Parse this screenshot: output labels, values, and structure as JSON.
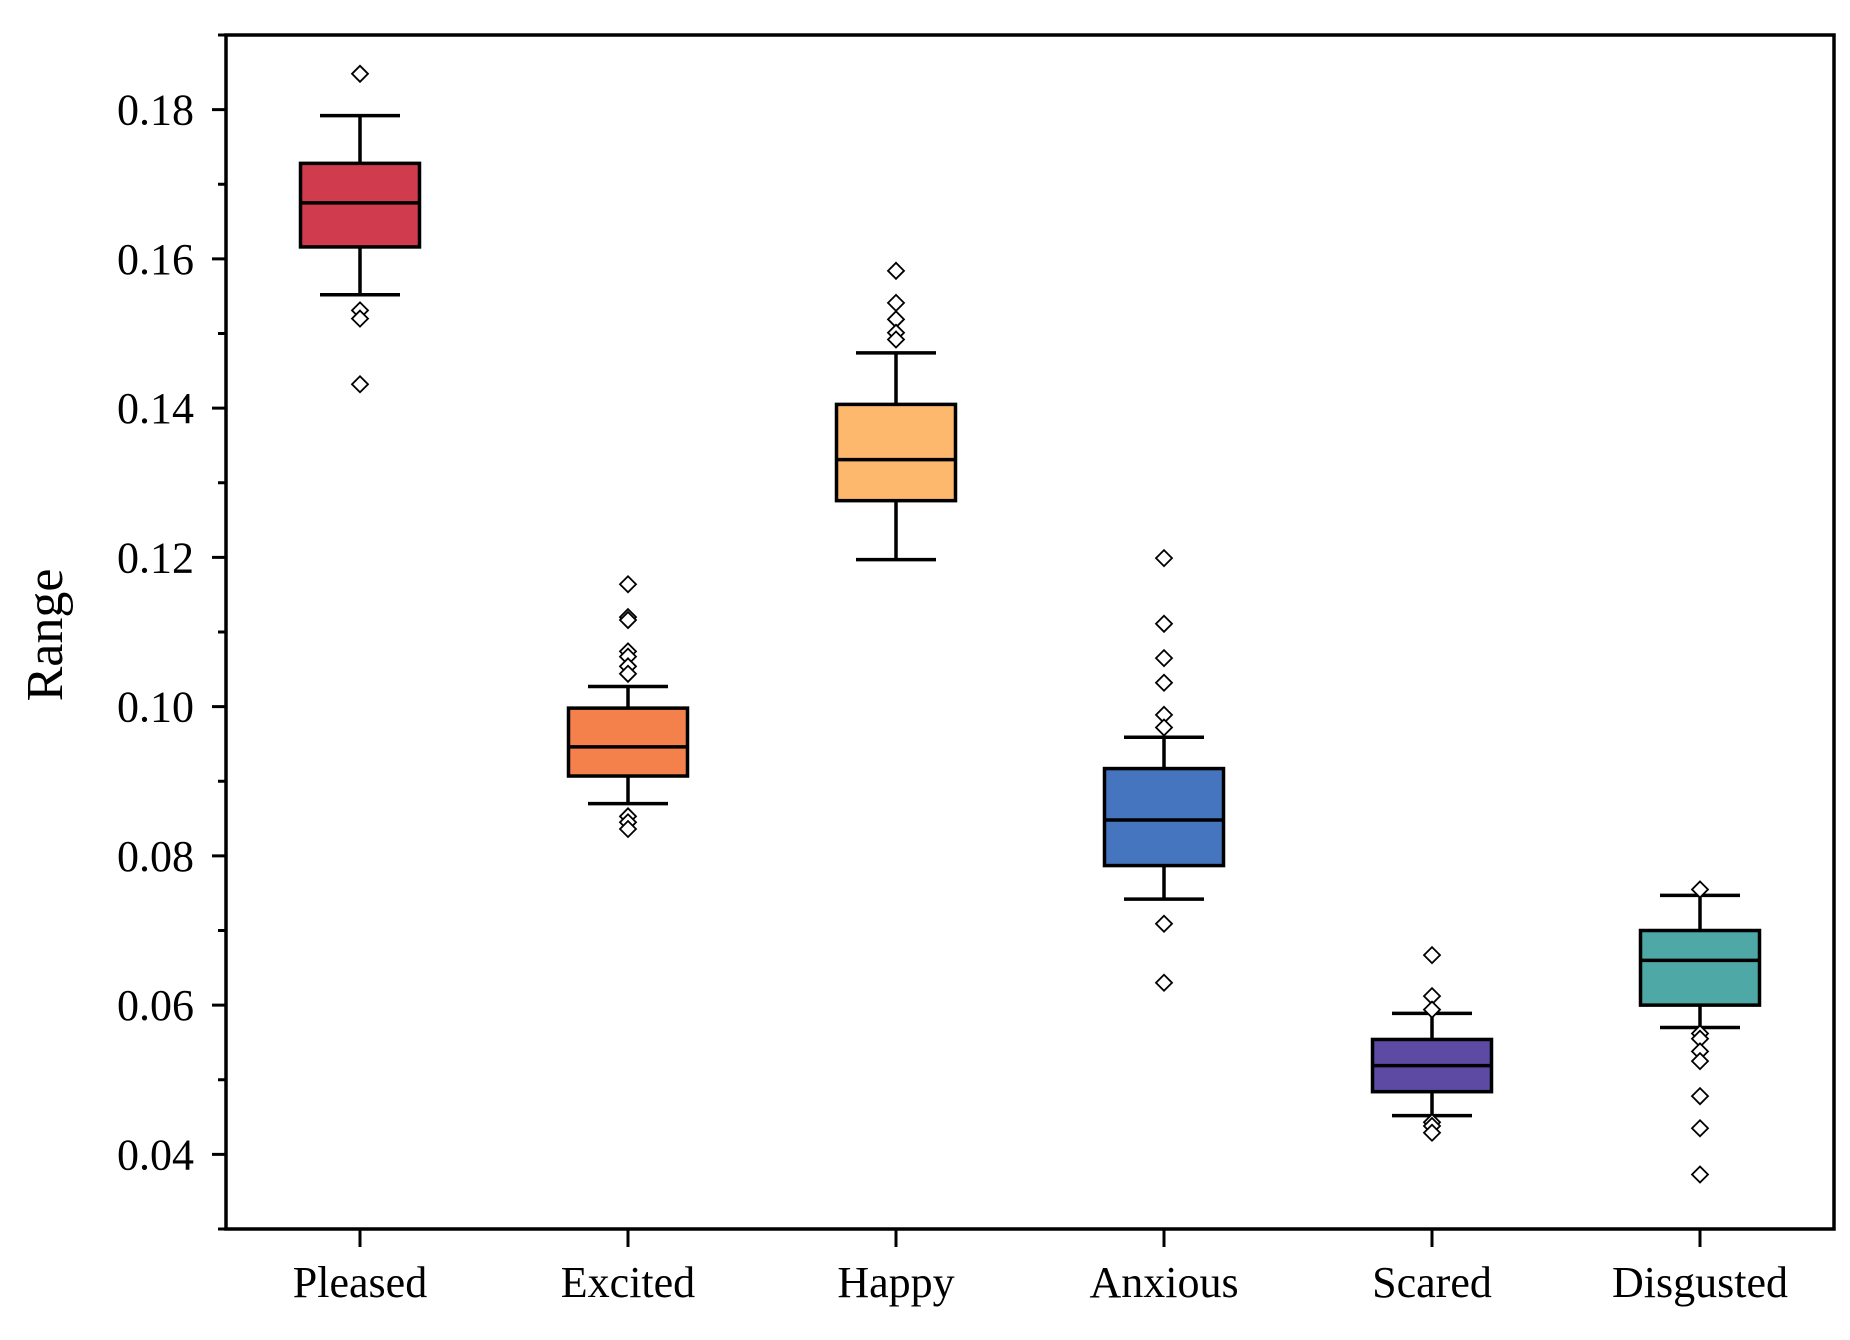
{
  "chart_data": {
    "type": "box",
    "ylabel": "Range",
    "xlabel": "",
    "ylim": [
      0.03,
      0.19
    ],
    "yticks": [
      "0.04",
      "0.06",
      "0.08",
      "0.10",
      "0.12",
      "0.14",
      "0.16",
      "0.18"
    ],
    "grid": false,
    "categories": [
      "Pleased",
      "Excited",
      "Happy",
      "Anxious",
      "Scared",
      "Disgusted"
    ],
    "boxes": [
      {
        "category": "Pleased",
        "color": "#d13b4e",
        "whisker_low": 0.1552,
        "q1": 0.1616,
        "median": 0.1675,
        "q3": 0.1728,
        "whisker_high": 0.1792,
        "outliers": [
          0.1848,
          0.1531,
          0.152,
          0.1432
        ]
      },
      {
        "category": "Excited",
        "color": "#f4814c",
        "whisker_low": 0.087,
        "q1": 0.0907,
        "median": 0.0946,
        "q3": 0.0998,
        "whisker_high": 0.1027,
        "outliers": [
          0.1164,
          0.112,
          0.1116,
          0.1074,
          0.1067,
          0.1054,
          0.1044,
          0.0853,
          0.0845,
          0.0836
        ]
      },
      {
        "category": "Happy",
        "color": "#fdb86e",
        "whisker_low": 0.1197,
        "q1": 0.1276,
        "median": 0.1331,
        "q3": 0.1405,
        "whisker_high": 0.1474,
        "outliers": [
          0.1584,
          0.1541,
          0.1519,
          0.1501,
          0.1492
        ]
      },
      {
        "category": "Anxious",
        "color": "#4575bf",
        "whisker_low": 0.0742,
        "q1": 0.0787,
        "median": 0.0848,
        "q3": 0.0917,
        "whisker_high": 0.0959,
        "outliers": [
          0.1199,
          0.1111,
          0.1065,
          0.1032,
          0.0989,
          0.0972,
          0.0709,
          0.063
        ]
      },
      {
        "category": "Scared",
        "color": "#5c4aa3",
        "whisker_low": 0.0452,
        "q1": 0.0484,
        "median": 0.0519,
        "q3": 0.0554,
        "whisker_high": 0.0589,
        "outliers": [
          0.0667,
          0.0612,
          0.0594,
          0.0443,
          0.0438,
          0.0429
        ]
      },
      {
        "category": "Disgusted",
        "color": "#4ea9a6",
        "whisker_low": 0.057,
        "q1": 0.06,
        "median": 0.066,
        "q3": 0.07,
        "whisker_high": 0.0747,
        "outliers": [
          0.0755,
          0.0562,
          0.0555,
          0.0538,
          0.0525,
          0.0478,
          0.0435,
          0.0373
        ]
      }
    ]
  }
}
